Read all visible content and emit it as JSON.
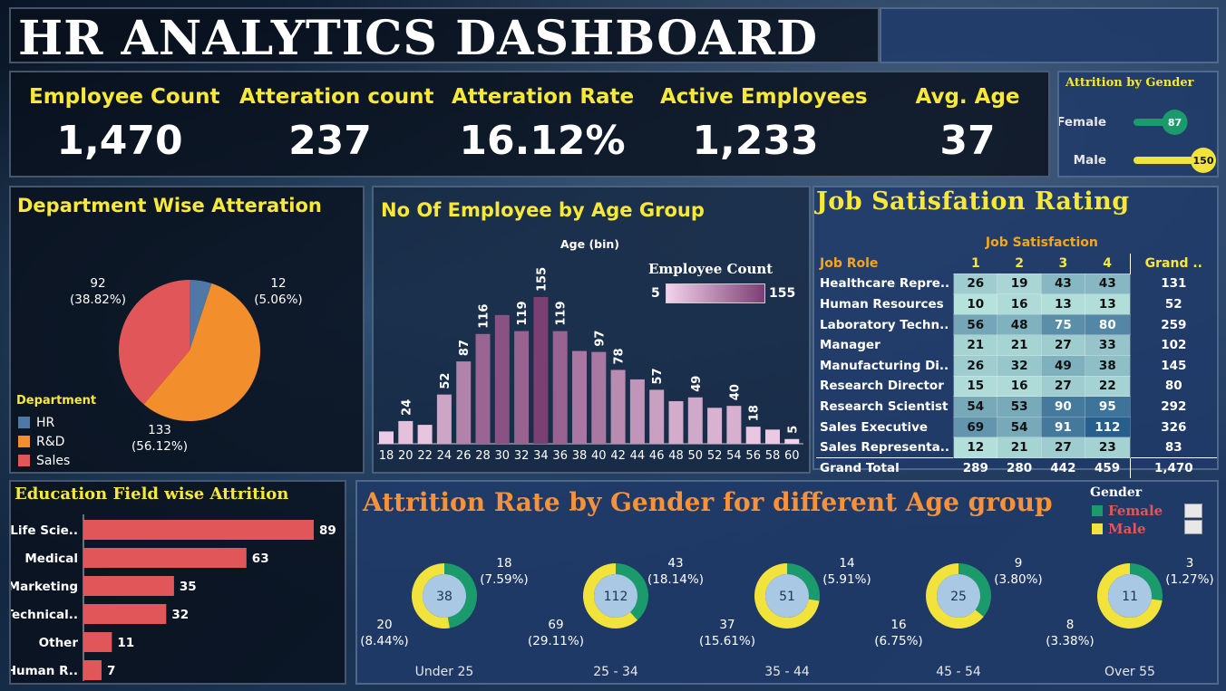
{
  "title": "HR ANALYTICS DASHBOARD",
  "kpis": [
    {
      "label": "Employee Count",
      "value": "1,470"
    },
    {
      "label": "Atteration count",
      "value": "237"
    },
    {
      "label": "Atteration Rate",
      "value": "16.12%"
    },
    {
      "label": "Active Employees",
      "value": "1,233"
    },
    {
      "label": "Avg. Age",
      "value": "37"
    }
  ],
  "attrition_by_gender": {
    "title": "Attrition by Gender",
    "rows": [
      {
        "label": "Female",
        "value": 87,
        "color": "#1b9b6b"
      },
      {
        "label": "Male",
        "value": 150,
        "color": "#f1e23c"
      }
    ]
  },
  "dept": {
    "title": "Department Wise Atteration",
    "legend_title": "Department",
    "chart_data": {
      "type": "pie",
      "categories": [
        "HR",
        "R&D",
        "Sales"
      ],
      "values": [
        12,
        133,
        92
      ],
      "labels": [
        "12\n(5.06%)",
        "133\n(56.12%)",
        "92\n(38.82%)"
      ],
      "colors": [
        "#4e79a7",
        "#f28e2b",
        "#e15759"
      ]
    }
  },
  "age": {
    "title": "No Of Employee by Age Group",
    "axis_title": "Age (bin)",
    "legend_title": "Employee Count",
    "legend_min": "5",
    "legend_max": "155",
    "chart_data": {
      "type": "bar",
      "categories": [
        "18",
        "20",
        "22",
        "24",
        "26",
        "28",
        "30",
        "32",
        "34",
        "36",
        "38",
        "40",
        "42",
        "44",
        "46",
        "48",
        "50",
        "52",
        "54",
        "56",
        "58",
        "60"
      ],
      "values": [
        13,
        24,
        20,
        52,
        87,
        116,
        136,
        119,
        155,
        119,
        98,
        97,
        78,
        68,
        57,
        45,
        49,
        38,
        40,
        18,
        15,
        5
      ],
      "data_labels": [
        "",
        "24",
        "",
        "52",
        "87",
        "116",
        "",
        "119",
        "155",
        "119",
        "",
        "97",
        "78",
        "",
        "57",
        "",
        "49",
        "",
        "40",
        "18",
        "",
        "5"
      ],
      "color_range": [
        "#f3d3ec",
        "#7b3f73"
      ]
    }
  },
  "job": {
    "title": "Job Satisfation Rating",
    "group_header": "Job Satisfaction",
    "role_header": "Job Role",
    "columns": [
      "1",
      "2",
      "3",
      "4",
      "Grand .."
    ],
    "rows": [
      {
        "role": "Healthcare Repre..",
        "values": [
          "26",
          "19",
          "43",
          "43"
        ],
        "total": "131"
      },
      {
        "role": "Human Resources",
        "values": [
          "10",
          "16",
          "13",
          "13"
        ],
        "total": "52"
      },
      {
        "role": "Laboratory Techn..",
        "values": [
          "56",
          "48",
          "75",
          "80"
        ],
        "total": "259"
      },
      {
        "role": "Manager",
        "values": [
          "21",
          "21",
          "27",
          "33"
        ],
        "total": "102"
      },
      {
        "role": "Manufacturing Di..",
        "values": [
          "26",
          "32",
          "49",
          "38"
        ],
        "total": "145"
      },
      {
        "role": "Research Director",
        "values": [
          "15",
          "16",
          "27",
          "22"
        ],
        "total": "80"
      },
      {
        "role": "Research Scientist",
        "values": [
          "54",
          "53",
          "90",
          "95"
        ],
        "total": "292"
      },
      {
        "role": "Sales Executive",
        "values": [
          "69",
          "54",
          "91",
          "112"
        ],
        "total": "326"
      },
      {
        "role": "Sales Representa..",
        "values": [
          "12",
          "21",
          "27",
          "23"
        ],
        "total": "83"
      }
    ],
    "grand_total": {
      "label": "Grand Total",
      "values": [
        "289",
        "280",
        "442",
        "459"
      ],
      "total": "1,470"
    }
  },
  "edu": {
    "title": "Education Field wise Attrition",
    "chart_data": {
      "type": "bar",
      "categories": [
        "Life Scie..",
        "Medical",
        "Marketing",
        "Technical..",
        "Other",
        "Human R.."
      ],
      "values": [
        89,
        63,
        35,
        32,
        11,
        7
      ],
      "color": "#e15759"
    }
  },
  "attr": {
    "title": "Attrition Rate by Gender for different  Age group",
    "legend_title": "Gender",
    "legend": [
      {
        "label": "Female",
        "color": "#1b9b6b"
      },
      {
        "label": "Male",
        "color": "#f1e23c"
      }
    ],
    "chart_data": {
      "type": "pie",
      "groups": [
        {
          "label": "Under 25",
          "total": "38",
          "female": 18,
          "female_label": "18\n(7.59%)",
          "male": 20,
          "male_label": "20\n(8.44%)"
        },
        {
          "label": "25 - 34",
          "total": "112",
          "female": 43,
          "female_label": "43\n(18.14%)",
          "male": 69,
          "male_label": "69\n(29.11%)"
        },
        {
          "label": "35 - 44",
          "total": "51",
          "female": 14,
          "female_label": "14\n(5.91%)",
          "male": 37,
          "male_label": "37\n(15.61%)"
        },
        {
          "label": "45 - 54",
          "total": "25",
          "female": 9,
          "female_label": "9\n(3.80%)",
          "male": 16,
          "male_label": "16\n(6.75%)"
        },
        {
          "label": "Over 55",
          "total": "11",
          "female": 3,
          "female_label": "3\n(1.27%)",
          "male": 8,
          "male_label": "8\n(3.38%)"
        }
      ]
    }
  }
}
